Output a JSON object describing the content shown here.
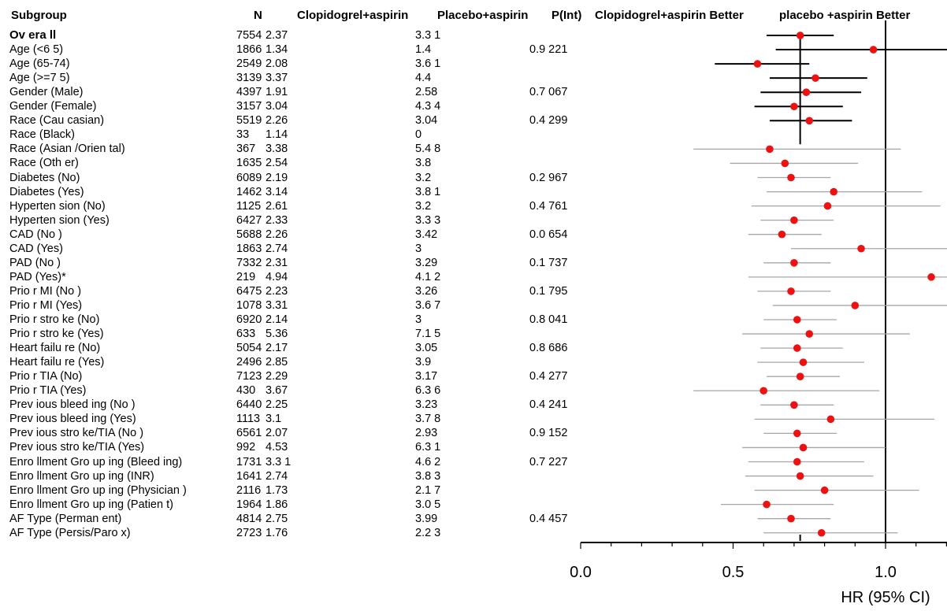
{
  "headers": {
    "subgroup": "Subgroup",
    "n": "N",
    "clopidogrel": "Clopidogrel+aspirin",
    "placebo": "Placebo+aspirin",
    "pint": "P(Int)",
    "better_left": "Clopidogrel+aspirin  Better",
    "better_right": "placebo +aspirin Better"
  },
  "chart_data": {
    "type": "forest",
    "xlabel": "HR (95% CI)",
    "xlim": [
      0.0,
      2.0
    ],
    "xticks": [
      "0.0",
      "0.5",
      "1.0",
      "1.5",
      "2.0"
    ],
    "reference_line": 1.0,
    "overall_line": 0.72,
    "rows": [
      {
        "label": "Ov era ll",
        "n": "7554",
        "clop": "2.37",
        "plac": "3.3 1",
        "pint": "",
        "hr": 0.72,
        "lo": 0.61,
        "hi": 0.83,
        "bold": true
      },
      {
        "label": "Age (<6 5)",
        "n": "1866",
        "clop": "1.34",
        "plac": "1.4",
        "pint": "0.9 221",
        "hr": 0.96,
        "lo": 0.64,
        "hi": 1.44
      },
      {
        "label": "Age (65-74)",
        "n": "2549",
        "clop": "2.08",
        "plac": "3.6 1",
        "pint": "",
        "hr": 0.58,
        "lo": 0.44,
        "hi": 0.75
      },
      {
        "label": "Age (>=7 5)",
        "n": "3139",
        "clop": "3.37",
        "plac": "4.4",
        "pint": "",
        "hr": 0.77,
        "lo": 0.62,
        "hi": 0.94
      },
      {
        "label": "Gender (Male)",
        "n": "4397",
        "clop": "1.91",
        "plac": "2.58",
        "pint": "0.7 067",
        "hr": 0.74,
        "lo": 0.59,
        "hi": 0.92
      },
      {
        "label": "Gender (Female)",
        "n": "3157",
        "clop": "3.04",
        "plac": "4.3 4",
        "pint": "",
        "hr": 0.7,
        "lo": 0.57,
        "hi": 0.86
      },
      {
        "label": "Race (Cau casian)",
        "n": "5519",
        "clop": "2.26",
        "plac": "3.04",
        "pint": "0.4 299",
        "hr": 0.75,
        "lo": 0.62,
        "hi": 0.89
      },
      {
        "label": "Race (Black)",
        "n": "33",
        "clop": "1.14",
        "plac": "0",
        "pint": "",
        "hr": null,
        "lo": null,
        "hi": null
      },
      {
        "label": "Race (Asian /Orien tal)",
        "n": "367",
        "clop": "3.38",
        "plac": "5.4 8",
        "pint": "",
        "hr": 0.62,
        "lo": 0.37,
        "hi": 1.05
      },
      {
        "label": "Race (Oth er)",
        "n": "1635",
        "clop": "2.54",
        "plac": "3.8",
        "pint": "",
        "hr": 0.67,
        "lo": 0.49,
        "hi": 0.91
      },
      {
        "label": "Diabetes (No)",
        "n": "6089",
        "clop": "2.19",
        "plac": "3.2",
        "pint": "0.2 967",
        "hr": 0.69,
        "lo": 0.58,
        "hi": 0.82
      },
      {
        "label": "Diabetes (Yes)",
        "n": "1462",
        "clop": "3.14",
        "plac": "3.8 1",
        "pint": "",
        "hr": 0.83,
        "lo": 0.61,
        "hi": 1.12
      },
      {
        "label": "Hyperten sion (No)",
        "n": "1125",
        "clop": "2.61",
        "plac": "3.2",
        "pint": "0.4 761",
        "hr": 0.81,
        "lo": 0.56,
        "hi": 1.18
      },
      {
        "label": "Hyperten sion (Yes)",
        "n": "6427",
        "clop": "2.33",
        "plac": "3.3 3",
        "pint": "",
        "hr": 0.7,
        "lo": 0.59,
        "hi": 0.83
      },
      {
        "label": "CAD (No )",
        "n": "5688",
        "clop": "2.26",
        "plac": "3.42",
        "pint": "0.0 654",
        "hr": 0.66,
        "lo": 0.55,
        "hi": 0.79
      },
      {
        "label": "CAD (Yes)",
        "n": "1863",
        "clop": "2.74",
        "plac": "3",
        "pint": "",
        "hr": 0.92,
        "lo": 0.69,
        "hi": 1.23
      },
      {
        "label": "PAD (No )",
        "n": "7332",
        "clop": "2.31",
        "plac": "3.29",
        "pint": "0.1 737",
        "hr": 0.7,
        "lo": 0.6,
        "hi": 0.82
      },
      {
        "label": "PAD (Yes)*",
        "n": "219",
        "clop": "4.94",
        "plac": "4.1 2",
        "pint": "",
        "hr": 1.15,
        "lo": 0.55,
        "hi": 2.0
      },
      {
        "label": "Prio r MI (No )",
        "n": "6475",
        "clop": "2.23",
        "plac": "3.26",
        "pint": "0.1 795",
        "hr": 0.69,
        "lo": 0.58,
        "hi": 0.82
      },
      {
        "label": "Prio r MI (Yes)",
        "n": "1078",
        "clop": "3.31",
        "plac": "3.6 7",
        "pint": "",
        "hr": 0.9,
        "lo": 0.63,
        "hi": 1.29
      },
      {
        "label": "Prio r stro ke (No)",
        "n": "6920",
        "clop": "2.14",
        "plac": "3",
        "pint": "0.8 041",
        "hr": 0.71,
        "lo": 0.6,
        "hi": 0.84
      },
      {
        "label": "Prio r stro ke (Yes)",
        "n": "633",
        "clop": "5.36",
        "plac": "7.1 5",
        "pint": "",
        "hr": 0.75,
        "lo": 0.53,
        "hi": 1.08
      },
      {
        "label": "Heart failu re (No)",
        "n": "5054",
        "clop": "2.17",
        "plac": "3.05",
        "pint": "0.8 686",
        "hr": 0.71,
        "lo": 0.59,
        "hi": 0.86
      },
      {
        "label": "Heart failu re (Yes)",
        "n": "2496",
        "clop": "2.85",
        "plac": "3.9",
        "pint": "",
        "hr": 0.73,
        "lo": 0.58,
        "hi": 0.93
      },
      {
        "label": "Prio r TIA (No)",
        "n": "7123",
        "clop": "2.29",
        "plac": "3.17",
        "pint": "0.4 277",
        "hr": 0.72,
        "lo": 0.61,
        "hi": 0.85
      },
      {
        "label": "Prio r TIA (Yes)",
        "n": "430",
        "clop": "3.67",
        "plac": "6.3 6",
        "pint": "",
        "hr": 0.6,
        "lo": 0.37,
        "hi": 0.98
      },
      {
        "label": "Prev ious bleed ing (No )",
        "n": "6440",
        "clop": "2.25",
        "plac": "3.23",
        "pint": "0.4 241",
        "hr": 0.7,
        "lo": 0.59,
        "hi": 0.83
      },
      {
        "label": "Prev ious bleed ing (Yes)",
        "n": "1113",
        "clop": "3.1",
        "plac": "3.7 8",
        "pint": "",
        "hr": 0.82,
        "lo": 0.57,
        "hi": 1.16
      },
      {
        "label": "Prev ious stro ke/TIA (No )",
        "n": "6561",
        "clop": "2.07",
        "plac": "2.93",
        "pint": "0.9 152",
        "hr": 0.71,
        "lo": 0.6,
        "hi": 0.84
      },
      {
        "label": "Prev ious stro ke/TIA (Yes)",
        "n": "992",
        "clop": "4.53",
        "plac": "6.3 1",
        "pint": "",
        "hr": 0.73,
        "lo": 0.53,
        "hi": 1.0
      },
      {
        "label": "Enro llment Gro up ing (Bleed ing)",
        "n": "1731",
        "clop": "3.3 1",
        "plac": "4.6 2",
        "pint": "0.7 227",
        "hr": 0.71,
        "lo": 0.55,
        "hi": 0.93
      },
      {
        "label": "Enro llment Gro up ing (INR)",
        "n": "1641",
        "clop": "2.74",
        "plac": "3.8 3",
        "pint": "",
        "hr": 0.72,
        "lo": 0.54,
        "hi": 0.96
      },
      {
        "label": "Enro llment Gro up ing (Physician )",
        "n": "2116",
        "clop": "1.73",
        "plac": "2.1 7",
        "pint": "",
        "hr": 0.8,
        "lo": 0.57,
        "hi": 1.11
      },
      {
        "label": "Enro llment Gro up ing (Patien t)",
        "n": "1964",
        "clop": "1.86",
        "plac": "3.0 5",
        "pint": "",
        "hr": 0.61,
        "lo": 0.46,
        "hi": 0.83
      },
      {
        "label": "AF Type (Perman ent)",
        "n": "4814",
        "clop": "2.75",
        "plac": "3.99",
        "pint": "0.4 457",
        "hr": 0.69,
        "lo": 0.58,
        "hi": 0.82
      },
      {
        "label": "AF Type (Persis/Paro x)",
        "n": "2723",
        "clop": "1.76",
        "plac": "2.2 3",
        "pint": "",
        "hr": 0.79,
        "lo": 0.6,
        "hi": 1.04
      }
    ]
  },
  "colors": {
    "point": "#ee1111",
    "ci_main": "#000000",
    "ci_sub": "#a6a6a6",
    "text": "#000000"
  }
}
